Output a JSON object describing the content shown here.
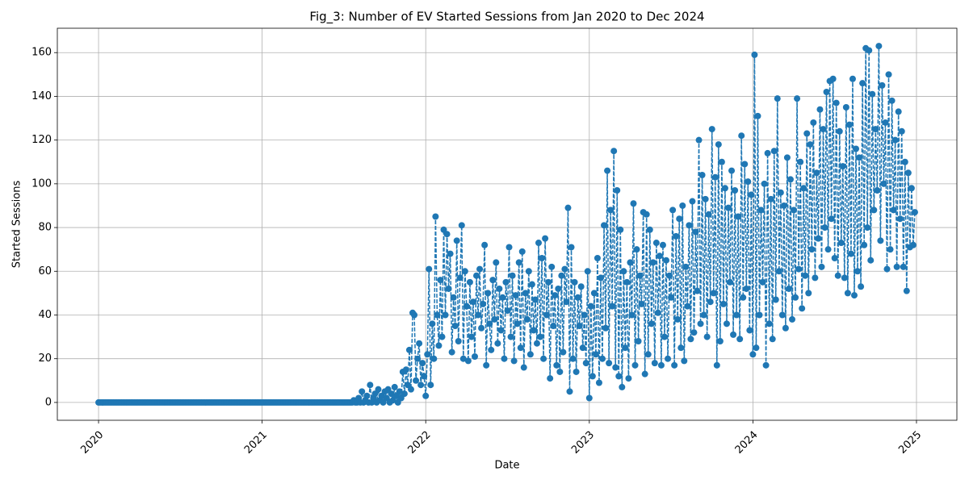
{
  "chart_data": {
    "type": "line",
    "title": "Fig_3: Number of EV Started Sessions from Jan 2020 to Dec 2024",
    "x_label": "Date",
    "y_label": "Started Sessions",
    "xlim": [
      2019.748,
      2025.247
    ],
    "xticks": [
      2020,
      2021,
      2022,
      2023,
      2024,
      2025
    ],
    "ylim": [
      -8.15,
      171.15
    ],
    "yticks": [
      0,
      20,
      40,
      60,
      80,
      100,
      120,
      140,
      160
    ],
    "grid": true,
    "x": [
      2020,
      2020.01,
      2020.02,
      2020.03,
      2020.04,
      2020.05,
      2020.06,
      2020.07,
      2020.08,
      2020.09,
      2020.1,
      2020.11,
      2020.12,
      2020.13,
      2020.14,
      2020.15,
      2020.16,
      2020.17,
      2020.18,
      2020.19,
      2020.2,
      2020.21,
      2020.22,
      2020.23,
      2020.24,
      2020.25,
      2020.26,
      2020.27,
      2020.28,
      2020.29,
      2020.3,
      2020.31,
      2020.32,
      2020.33,
      2020.34,
      2020.35,
      2020.36,
      2020.37,
      2020.38,
      2020.39,
      2020.4,
      2020.41,
      2020.42,
      2020.43,
      2020.44,
      2020.45,
      2020.46,
      2020.47,
      2020.48,
      2020.49,
      2020.5,
      2020.51,
      2020.52,
      2020.53,
      2020.54,
      2020.55,
      2020.56,
      2020.57,
      2020.58,
      2020.59,
      2020.6,
      2020.61,
      2020.62,
      2020.63,
      2020.64,
      2020.65,
      2020.66,
      2020.67,
      2020.68,
      2020.69,
      2020.7,
      2020.71,
      2020.72,
      2020.73,
      2020.74,
      2020.75,
      2020.76,
      2020.77,
      2020.78,
      2020.79,
      2020.8,
      2020.81,
      2020.82,
      2020.83,
      2020.84,
      2020.85,
      2020.86,
      2020.87,
      2020.88,
      2020.89,
      2020.9,
      2020.91,
      2020.92,
      2020.93,
      2020.94,
      2020.95,
      2020.96,
      2020.97,
      2020.98,
      2020.99,
      2021,
      2021.01,
      2021.02,
      2021.03,
      2021.04,
      2021.05,
      2021.06,
      2021.07,
      2021.08,
      2021.09,
      2021.1,
      2021.11,
      2021.12,
      2021.13,
      2021.14,
      2021.15,
      2021.16,
      2021.17,
      2021.18,
      2021.19,
      2021.2,
      2021.21,
      2021.22,
      2021.23,
      2021.24,
      2021.25,
      2021.26,
      2021.27,
      2021.28,
      2021.29,
      2021.3,
      2021.31,
      2021.32,
      2021.33,
      2021.34,
      2021.35,
      2021.36,
      2021.37,
      2021.38,
      2021.39,
      2021.4,
      2021.41,
      2021.42,
      2021.43,
      2021.44,
      2021.45,
      2021.46,
      2021.47,
      2021.48,
      2021.49,
      2021.5,
      2021.51,
      2021.52,
      2021.53,
      2021.54,
      2021.55,
      2021.56,
      2021.57,
      2021.58,
      2021.59,
      2021.6,
      2021.61,
      2021.62,
      2021.63,
      2021.64,
      2021.65,
      2021.66,
      2021.67,
      2021.68,
      2021.69,
      2021.7,
      2021.71,
      2021.72,
      2021.73,
      2021.74,
      2021.75,
      2021.76,
      2021.77,
      2021.78,
      2021.79,
      2021.8,
      2021.81,
      2021.82,
      2021.83,
      2021.84,
      2021.85,
      2021.86,
      2021.87,
      2021.88,
      2021.89,
      2021.9,
      2021.91,
      2021.92,
      2021.93,
      2021.94,
      2021.95,
      2021.96,
      2021.97,
      2021.98,
      2021.99,
      2022,
      2022.01,
      2022.02,
      2022.03,
      2022.04,
      2022.05,
      2022.06,
      2022.07,
      2022.08,
      2022.09,
      2022.1,
      2022.11,
      2022.12,
      2022.13,
      2022.14,
      2022.15,
      2022.16,
      2022.17,
      2022.18,
      2022.19,
      2022.2,
      2022.21,
      2022.22,
      2022.23,
      2022.24,
      2022.25,
      2022.26,
      2022.27,
      2022.28,
      2022.29,
      2022.3,
      2022.31,
      2022.32,
      2022.33,
      2022.34,
      2022.35,
      2022.36,
      2022.37,
      2022.38,
      2022.39,
      2022.4,
      2022.41,
      2022.42,
      2022.43,
      2022.44,
      2022.45,
      2022.46,
      2022.47,
      2022.48,
      2022.49,
      2022.5,
      2022.51,
      2022.52,
      2022.53,
      2022.54,
      2022.55,
      2022.56,
      2022.57,
      2022.58,
      2022.59,
      2022.6,
      2022.61,
      2022.62,
      2022.63,
      2022.64,
      2022.65,
      2022.66,
      2022.67,
      2022.68,
      2022.69,
      2022.7,
      2022.71,
      2022.72,
      2022.73,
      2022.74,
      2022.75,
      2022.76,
      2022.77,
      2022.78,
      2022.79,
      2022.8,
      2022.81,
      2022.82,
      2022.83,
      2022.84,
      2022.85,
      2022.86,
      2022.87,
      2022.88,
      2022.89,
      2022.9,
      2022.91,
      2022.92,
      2022.93,
      2022.94,
      2022.95,
      2022.96,
      2022.97,
      2022.98,
      2022.99,
      2023,
      2023.01,
      2023.02,
      2023.03,
      2023.04,
      2023.05,
      2023.06,
      2023.07,
      2023.08,
      2023.09,
      2023.1,
      2023.11,
      2023.12,
      2023.13,
      2023.14,
      2023.15,
      2023.16,
      2023.17,
      2023.18,
      2023.19,
      2023.2,
      2023.21,
      2023.22,
      2023.23,
      2023.24,
      2023.25,
      2023.26,
      2023.27,
      2023.28,
      2023.29,
      2023.3,
      2023.31,
      2023.32,
      2023.33,
      2023.34,
      2023.35,
      2023.36,
      2023.37,
      2023.38,
      2023.39,
      2023.4,
      2023.41,
      2023.42,
      2023.43,
      2023.44,
      2023.45,
      2023.46,
      2023.47,
      2023.48,
      2023.49,
      2023.5,
      2023.51,
      2023.52,
      2023.53,
      2023.54,
      2023.55,
      2023.56,
      2023.57,
      2023.58,
      2023.59,
      2023.6,
      2023.61,
      2023.62,
      2023.63,
      2023.64,
      2023.65,
      2023.66,
      2023.67,
      2023.68,
      2023.69,
      2023.7,
      2023.71,
      2023.72,
      2023.73,
      2023.74,
      2023.75,
      2023.76,
      2023.77,
      2023.78,
      2023.79,
      2023.8,
      2023.81,
      2023.82,
      2023.83,
      2023.84,
      2023.85,
      2023.86,
      2023.87,
      2023.88,
      2023.89,
      2023.9,
      2023.91,
      2023.92,
      2023.93,
      2023.94,
      2023.95,
      2023.96,
      2023.97,
      2023.98,
      2023.99,
      2024,
      2024.01,
      2024.02,
      2024.03,
      2024.04,
      2024.05,
      2024.06,
      2024.07,
      2024.08,
      2024.09,
      2024.1,
      2024.11,
      2024.12,
      2024.13,
      2024.14,
      2024.15,
      2024.16,
      2024.17,
      2024.18,
      2024.19,
      2024.2,
      2024.21,
      2024.22,
      2024.23,
      2024.24,
      2024.25,
      2024.26,
      2024.27,
      2024.28,
      2024.29,
      2024.3,
      2024.31,
      2024.32,
      2024.33,
      2024.34,
      2024.35,
      2024.36,
      2024.37,
      2024.38,
      2024.39,
      2024.4,
      2024.41,
      2024.42,
      2024.43,
      2024.44,
      2024.45,
      2024.46,
      2024.47,
      2024.48,
      2024.49,
      2024.5,
      2024.51,
      2024.52,
      2024.53,
      2024.54,
      2024.55,
      2024.56,
      2024.57,
      2024.58,
      2024.59,
      2024.6,
      2024.61,
      2024.62,
      2024.63,
      2024.64,
      2024.65,
      2024.66,
      2024.67,
      2024.68,
      2024.69,
      2024.7,
      2024.71,
      2024.72,
      2024.73,
      2024.74,
      2024.75,
      2024.76,
      2024.77,
      2024.78,
      2024.79,
      2024.8,
      2024.81,
      2024.82,
      2024.83,
      2024.84,
      2024.85,
      2024.86,
      2024.87,
      2024.88,
      2024.89,
      2024.9,
      2024.91,
      2024.92,
      2024.93,
      2024.94,
      2024.95,
      2024.96,
      2024.97,
      2024.98,
      2024.99
    ],
    "series": [
      {
        "color": "#1f77b4",
        "values": [
          0,
          0,
          0,
          0,
          0,
          0,
          0,
          0,
          0,
          0,
          0,
          0,
          0,
          0,
          0,
          0,
          0,
          0,
          0,
          0,
          0,
          0,
          0,
          0,
          0,
          0,
          0,
          0,
          0,
          0,
          0,
          0,
          0,
          0,
          0,
          0,
          0,
          0,
          0,
          0,
          0,
          0,
          0,
          0,
          0,
          0,
          0,
          0,
          0,
          0,
          0,
          0,
          0,
          0,
          0,
          0,
          0,
          0,
          0,
          0,
          0,
          0,
          0,
          0,
          0,
          0,
          0,
          0,
          0,
          0,
          0,
          0,
          0,
          0,
          0,
          0,
          0,
          0,
          0,
          0,
          0,
          0,
          0,
          0,
          0,
          0,
          0,
          0,
          0,
          0,
          0,
          0,
          0,
          0,
          0,
          0,
          0,
          0,
          0,
          0,
          0,
          0,
          0,
          0,
          0,
          0,
          0,
          0,
          0,
          0,
          0,
          0,
          0,
          0,
          0,
          0,
          0,
          0,
          0,
          0,
          0,
          0,
          0,
          0,
          0,
          0,
          0,
          0,
          0,
          0,
          0,
          0,
          0,
          0,
          0,
          0,
          0,
          0,
          0,
          0,
          0,
          0,
          0,
          0,
          0,
          0,
          0,
          0,
          0,
          0,
          0,
          0,
          0,
          0,
          0,
          0,
          1,
          0,
          0,
          2,
          0,
          5,
          0,
          1,
          3,
          0,
          8,
          0,
          2,
          4,
          0,
          6,
          1,
          3,
          0,
          5,
          2,
          6,
          0,
          4,
          1,
          7,
          3,
          0,
          5,
          2,
          14,
          4,
          15,
          8,
          24,
          6,
          41,
          40,
          10,
          20,
          27,
          8,
          18,
          12,
          3,
          22,
          61,
          8,
          36,
          20,
          85,
          40,
          26,
          56,
          30,
          79,
          40,
          77,
          52,
          68,
          23,
          48,
          35,
          74,
          28,
          57,
          81,
          20,
          60,
          44,
          19,
          55,
          30,
          46,
          21,
          58,
          40,
          61,
          34,
          45,
          72,
          17,
          50,
          36,
          24,
          56,
          38,
          64,
          27,
          52,
          33,
          48,
          20,
          55,
          42,
          71,
          30,
          58,
          19,
          49,
          36,
          64,
          25,
          69,
          16,
          50,
          38,
          60,
          22,
          54,
          33,
          47,
          27,
          73,
          30,
          66,
          20,
          75,
          40,
          55,
          11,
          62,
          35,
          49,
          17,
          52,
          14,
          58,
          23,
          61,
          46,
          89,
          5,
          71,
          20,
          55,
          14,
          48,
          35,
          53,
          25,
          40,
          18,
          60,
          2,
          44,
          12,
          50,
          22,
          66,
          9,
          57,
          20,
          81,
          34,
          106,
          18,
          88,
          44,
          115,
          16,
          97,
          12,
          79,
          7,
          60,
          25,
          55,
          11,
          64,
          40,
          91,
          17,
          70,
          28,
          58,
          45,
          87,
          13,
          86,
          22,
          79,
          36,
          64,
          18,
          73,
          41,
          67,
          17,
          72,
          30,
          65,
          20,
          58,
          48,
          88,
          17,
          76,
          38,
          84,
          25,
          90,
          19,
          62,
          44,
          81,
          29,
          92,
          32,
          78,
          51,
          120,
          36,
          104,
          40,
          93,
          30,
          86,
          46,
          125,
          50,
          103,
          17,
          118,
          28,
          110,
          45,
          98,
          36,
          89,
          55,
          106,
          31,
          97,
          40,
          85,
          29,
          122,
          48,
          109,
          52,
          101,
          33,
          95,
          22,
          159,
          25,
          131,
          40,
          88,
          55,
          100,
          17,
          114,
          36,
          93,
          29,
          115,
          47,
          139,
          60,
          96,
          40,
          90,
          34,
          112,
          52,
          102,
          38,
          88,
          48,
          139,
          61,
          110,
          43,
          98,
          58,
          123,
          50,
          118,
          70,
          128,
          57,
          105,
          75,
          134,
          62,
          125,
          80,
          142,
          70,
          147,
          84,
          148,
          66,
          137,
          58,
          124,
          73,
          108,
          57,
          135,
          50,
          127,
          68,
          148,
          49,
          116,
          60,
          112,
          53,
          146,
          72,
          162,
          80,
          161,
          65,
          141,
          88,
          125,
          97,
          163,
          74,
          145,
          100,
          128,
          61,
          150,
          70,
          138,
          88,
          120,
          62,
          133,
          84,
          124,
          62,
          110,
          51,
          105,
          71,
          98,
          72,
          87
        ]
      }
    ]
  }
}
